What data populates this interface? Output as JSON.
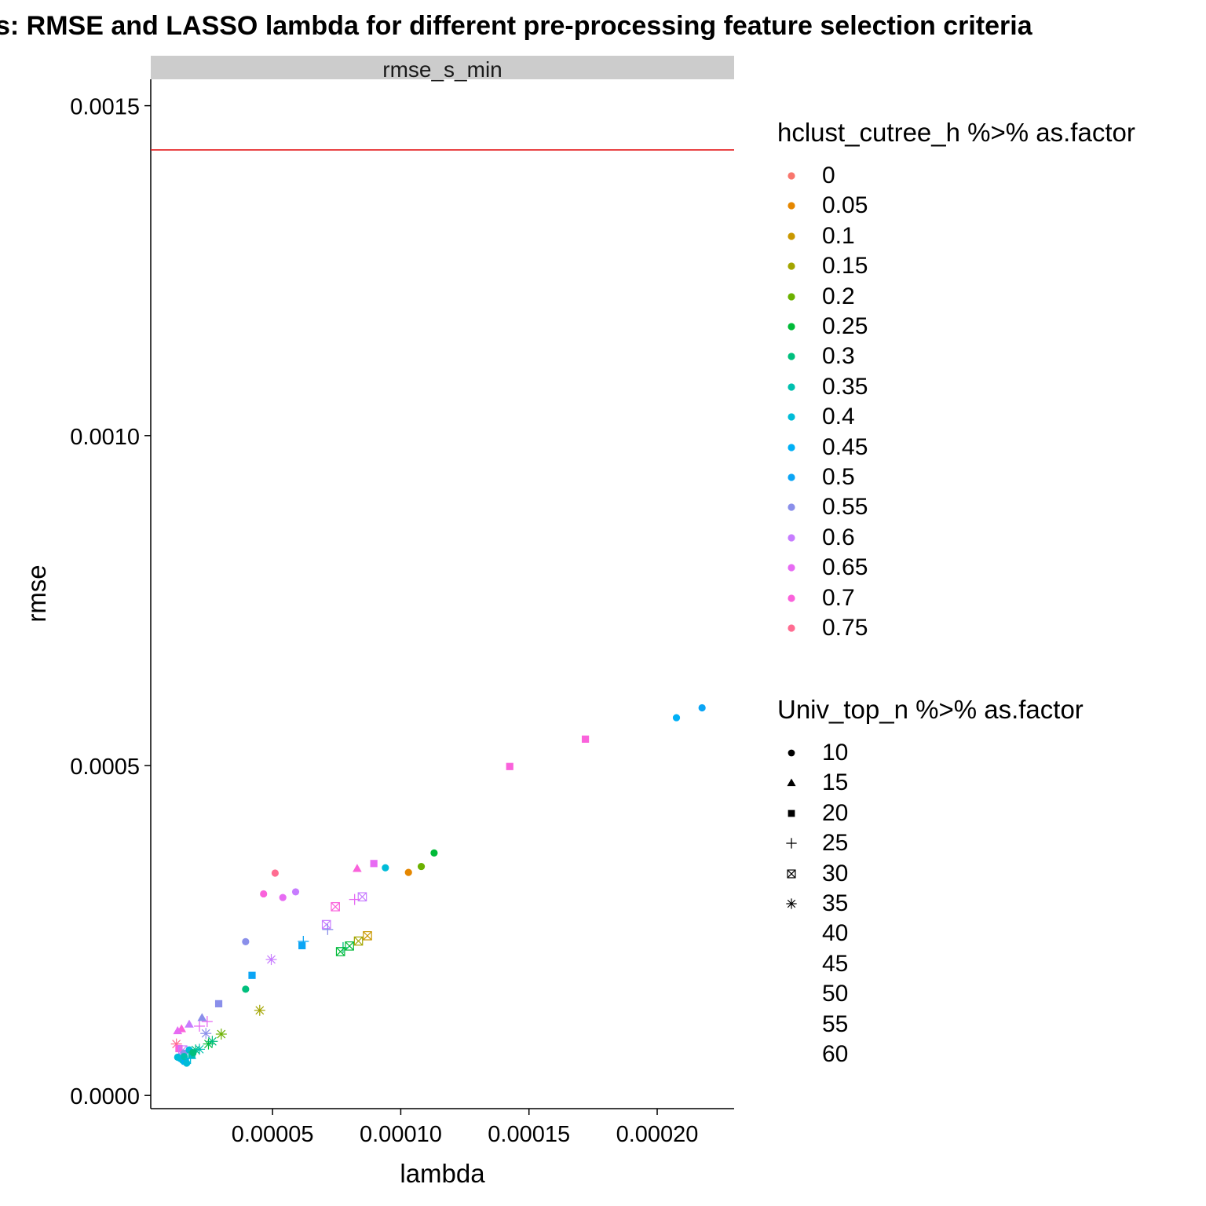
{
  "chart_data": {
    "type": "scatter",
    "title": "s: RMSE and LASSO lambda for different pre-processing feature selection criteria",
    "facet_label": "rmse_s_min",
    "xlabel": "lambda",
    "ylabel": "rmse",
    "xlim": [
      2.5e-06,
      0.00023
    ],
    "ylim": [
      -2e-05,
      0.00154
    ],
    "x_ticks": [
      5e-05,
      0.0001,
      0.00015,
      0.0002
    ],
    "x_tick_labels": [
      "0.00005",
      "0.00010",
      "0.00015",
      "0.00020"
    ],
    "y_ticks": [
      0.0,
      0.0005,
      0.001,
      0.0015
    ],
    "y_tick_labels": [
      "0.0000",
      "0.0005",
      "0.0010",
      "0.0015"
    ],
    "grid": false,
    "reference_line": {
      "y": 0.001433,
      "color": "#E41A1C"
    },
    "color_legend": {
      "title": "hclust_cutree_h %>% as.factor",
      "levels": [
        "0",
        "0.05",
        "0.1",
        "0.15",
        "0.2",
        "0.25",
        "0.3",
        "0.35",
        "0.4",
        "0.45",
        "0.5",
        "0.55",
        "0.6",
        "0.65",
        "0.7",
        "0.75"
      ],
      "colors": [
        "#F8766D",
        "#E58700",
        "#C99800",
        "#A3A500",
        "#6BB100",
        "#00BA38",
        "#00BF7D",
        "#00C0AF",
        "#00BCD8",
        "#00B0F6",
        "#0BA5F5",
        "#8A8FEA",
        "#C77CFF",
        "#E76BF3",
        "#FA62DB",
        "#FF6C91"
      ]
    },
    "shape_legend": {
      "title": "Univ_top_n %>% as.factor",
      "levels": [
        "10",
        "15",
        "20",
        "25",
        "30",
        "35",
        "40",
        "45",
        "50",
        "55",
        "60"
      ],
      "shapes": [
        "circle",
        "triangle",
        "square",
        "plus",
        "boxcross",
        "asterisk",
        "none",
        "none",
        "none",
        "none",
        "none"
      ]
    },
    "legend_position": "right",
    "points": [
      {
        "x": 0.0002175,
        "y": 0.0005875,
        "color": "0.5",
        "shape": "10"
      },
      {
        "x": 0.0002075,
        "y": 0.0005725,
        "color": "0.45",
        "shape": "10"
      },
      {
        "x": 0.000172,
        "y": 0.00054,
        "color": "0.7",
        "shape": "20"
      },
      {
        "x": 0.0001425,
        "y": 0.0004985,
        "color": "0.7",
        "shape": "20"
      },
      {
        "x": 0.000113,
        "y": 0.0003675,
        "color": "0.25",
        "shape": "10"
      },
      {
        "x": 0.000108,
        "y": 0.000347,
        "color": "0.2",
        "shape": "10"
      },
      {
        "x": 0.000103,
        "y": 0.000338,
        "color": "0.05",
        "shape": "10"
      },
      {
        "x": 9.4e-05,
        "y": 0.000345,
        "color": "0.4",
        "shape": "10"
      },
      {
        "x": 8.95e-05,
        "y": 0.0003515,
        "color": "0.65",
        "shape": "20"
      },
      {
        "x": 8.3e-05,
        "y": 0.000344,
        "color": "0.7",
        "shape": "15"
      },
      {
        "x": 5.1e-05,
        "y": 0.000337,
        "color": "0.75",
        "shape": "10"
      },
      {
        "x": 4.65e-05,
        "y": 0.0003055,
        "color": "0.7",
        "shape": "10"
      },
      {
        "x": 5.4e-05,
        "y": 0.0003,
        "color": "0.65",
        "shape": "10"
      },
      {
        "x": 5.9e-05,
        "y": 0.0003085,
        "color": "0.6",
        "shape": "10"
      },
      {
        "x": 8.5e-05,
        "y": 0.000301,
        "color": "0.6",
        "shape": "30"
      },
      {
        "x": 8.2e-05,
        "y": 0.000297,
        "color": "0.65",
        "shape": "25"
      },
      {
        "x": 7.45e-05,
        "y": 0.000286,
        "color": "0.7",
        "shape": "30"
      },
      {
        "x": 7.1e-05,
        "y": 0.000259,
        "color": "0.6",
        "shape": "30"
      },
      {
        "x": 7.15e-05,
        "y": 0.0002515,
        "color": "0.55",
        "shape": "25"
      },
      {
        "x": 8.7e-05,
        "y": 0.000242,
        "color": "0.1",
        "shape": "30"
      },
      {
        "x": 8.35e-05,
        "y": 0.000234,
        "color": "0.15",
        "shape": "30"
      },
      {
        "x": 8e-05,
        "y": 0.0002265,
        "color": "0.25",
        "shape": "30"
      },
      {
        "x": 7.75e-05,
        "y": 0.000224,
        "color": "0.3",
        "shape": "25"
      },
      {
        "x": 7.65e-05,
        "y": 0.000218,
        "color": "0.25",
        "shape": "30"
      },
      {
        "x": 6.2e-05,
        "y": 0.0002335,
        "color": "0.5",
        "shape": "25"
      },
      {
        "x": 6.15e-05,
        "y": 0.000227,
        "color": "0.5",
        "shape": "20"
      },
      {
        "x": 3.95e-05,
        "y": 0.000233,
        "color": "0.55",
        "shape": "10"
      },
      {
        "x": 4.95e-05,
        "y": 0.000206,
        "color": "0.6",
        "shape": "35"
      },
      {
        "x": 4.2e-05,
        "y": 0.000182,
        "color": "0.5",
        "shape": "20"
      },
      {
        "x": 3.95e-05,
        "y": 0.000161,
        "color": "0.3",
        "shape": "10"
      },
      {
        "x": 4.5e-05,
        "y": 0.000129,
        "color": "0.15",
        "shape": "35"
      },
      {
        "x": 2.9e-05,
        "y": 0.000139,
        "color": "0.55",
        "shape": "20"
      },
      {
        "x": 3e-05,
        "y": 9.3e-05,
        "color": "0.2",
        "shape": "35"
      },
      {
        "x": 2.25e-05,
        "y": 0.000118,
        "color": "0.55",
        "shape": "15"
      },
      {
        "x": 2.45e-05,
        "y": 0.000112,
        "color": "0.65",
        "shape": "25"
      },
      {
        "x": 2.15e-05,
        "y": 0.000105,
        "color": "0.65",
        "shape": "25"
      },
      {
        "x": 2.4e-05,
        "y": 9.4e-05,
        "color": "0.55",
        "shape": "35"
      },
      {
        "x": 1.75e-05,
        "y": 0.000108,
        "color": "0.6",
        "shape": "15"
      },
      {
        "x": 1.45e-05,
        "y": 0.000101,
        "color": "0.7",
        "shape": "15"
      },
      {
        "x": 1.3e-05,
        "y": 9.8e-05,
        "color": "0.65",
        "shape": "15"
      },
      {
        "x": 1.25e-05,
        "y": 7.8e-05,
        "color": "0.75",
        "shape": "35"
      },
      {
        "x": 1.35e-05,
        "y": 7.1e-05,
        "color": "0.7",
        "shape": "20"
      },
      {
        "x": 1.5e-05,
        "y": 6.9e-05,
        "color": "0.6",
        "shape": "30"
      },
      {
        "x": 1.55e-05,
        "y": 6.4e-05,
        "color": "0.55",
        "shape": "10"
      },
      {
        "x": 1.75e-05,
        "y": 6.9e-05,
        "color": "0.4",
        "shape": "10"
      },
      {
        "x": 1.85e-05,
        "y": 6.1e-05,
        "color": "0.35",
        "shape": "20"
      },
      {
        "x": 2e-05,
        "y": 6.9e-05,
        "color": "0.3",
        "shape": "35"
      },
      {
        "x": 2.15e-05,
        "y": 7e-05,
        "color": "0.35",
        "shape": "35"
      },
      {
        "x": 2.5e-05,
        "y": 7.8e-05,
        "color": "0.25",
        "shape": "35"
      },
      {
        "x": 2.65e-05,
        "y": 8.2e-05,
        "color": "0.3",
        "shape": "35"
      },
      {
        "x": 1.4e-05,
        "y": 5.6e-05,
        "color": "0.45",
        "shape": "10"
      },
      {
        "x": 1.5e-05,
        "y": 5.3e-05,
        "color": "0.4",
        "shape": "10"
      },
      {
        "x": 1.6e-05,
        "y": 5.2e-05,
        "color": "0.45",
        "shape": "20"
      },
      {
        "x": 1.65e-05,
        "y": 4.9e-05,
        "color": "0.4",
        "shape": "10"
      },
      {
        "x": 1.55e-05,
        "y": 5.9e-05,
        "color": "0.35",
        "shape": "10"
      },
      {
        "x": 1.8e-05,
        "y": 5.6e-05,
        "color": "0.4",
        "shape": "25"
      },
      {
        "x": 1.3e-05,
        "y": 5.8e-05,
        "color": "0.4",
        "shape": "10"
      },
      {
        "x": 1.9e-05,
        "y": 6.5e-05,
        "color": "0.3",
        "shape": "10"
      }
    ]
  }
}
